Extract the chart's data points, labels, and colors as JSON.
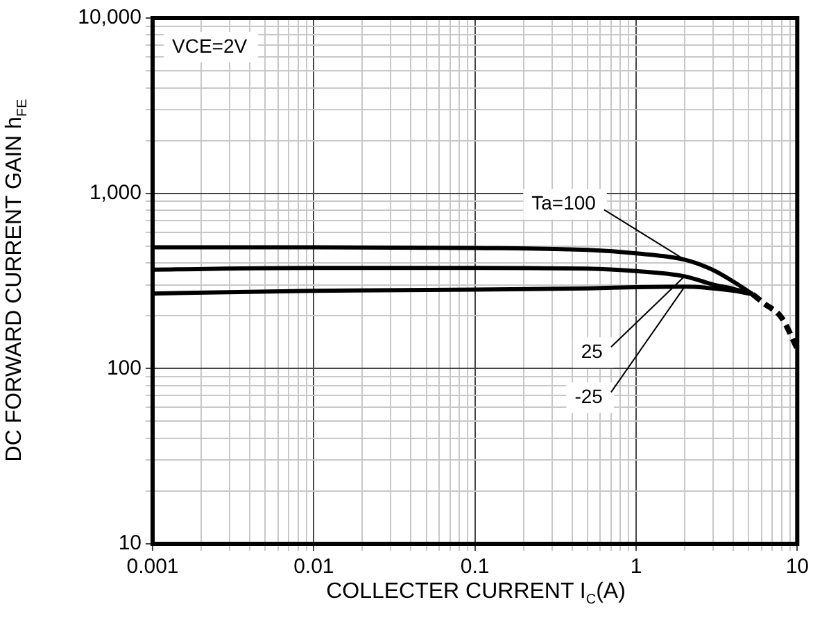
{
  "chart_data": {
    "type": "line",
    "xlabel": "COLLECTER CURRENT  I$_{C}$(A)",
    "ylabel": "DC FORWARD CURRENT GAIN  h$_{FE}$",
    "annotations": [
      "VCE=2V"
    ],
    "log": "xy",
    "grid": true,
    "legend": false,
    "marker": "none",
    "xlim": [
      0.001,
      10
    ],
    "ylim": [
      10,
      10000
    ],
    "xticks": [
      0.001,
      {
        "value": 0.002,
        "label": null
      },
      {
        "value": 0.003,
        "label": null
      },
      {
        "value": 0.004,
        "label": null
      },
      {
        "value": 0.005,
        "label": null
      },
      {
        "value": 0.006,
        "label": null
      },
      {
        "value": 0.007,
        "label": null
      },
      {
        "value": 0.008,
        "label": null
      },
      {
        "value": 0.009,
        "label": null
      },
      0.01,
      {
        "value": 0.02,
        "label": null
      },
      {
        "value": 0.03,
        "label": null
      },
      {
        "value": 0.04,
        "label": null
      },
      {
        "value": 0.05,
        "label": null
      },
      {
        "value": 0.06,
        "label": null
      },
      {
        "value": 0.07,
        "label": null
      },
      {
        "value": 0.08,
        "label": null
      },
      {
        "value": 0.09,
        "label": null
      },
      0.1,
      {
        "value": 0.2,
        "label": null
      },
      {
        "value": 0.3,
        "label": null
      },
      {
        "value": 0.4,
        "label": null
      },
      {
        "value": 0.5,
        "label": null
      },
      {
        "value": 0.6,
        "label": null
      },
      {
        "value": 0.7,
        "label": null
      },
      {
        "value": 0.8,
        "label": null
      },
      {
        "value": 0.9,
        "label": null
      },
      1,
      {
        "value": 2,
        "label": null
      },
      {
        "value": 3,
        "label": null
      },
      {
        "value": 4,
        "label": null
      },
      {
        "value": 5,
        "label": null
      },
      {
        "value": 6,
        "label": null
      },
      {
        "value": 7,
        "label": null
      },
      {
        "value": 8,
        "label": null
      },
      {
        "value": 9,
        "label": null
      },
      10
    ],
    "yticks": [
      10,
      {
        "value": 20,
        "label": null
      },
      {
        "value": 30,
        "label": null
      },
      {
        "value": 40,
        "label": null
      },
      {
        "value": 50,
        "label": null
      },
      {
        "value": 60,
        "label": null
      },
      {
        "value": 70,
        "label": null
      },
      {
        "value": 80,
        "label": null
      },
      {
        "value": 90,
        "label": null
      },
      100,
      {
        "value": 200,
        "label": null
      },
      {
        "value": 300,
        "label": null
      },
      {
        "value": 400,
        "label": null
      },
      {
        "value": 500,
        "label": null
      },
      {
        "value": 600,
        "label": null
      },
      {
        "value": 700,
        "label": null
      },
      {
        "value": 800,
        "label": null
      },
      {
        "value": 900,
        "label": null
      },
      {
        "value": 1000,
        "label": "1,000"
      },
      {
        "value": 2000,
        "label": null
      },
      {
        "value": 3000,
        "label": null
      },
      {
        "value": 4000,
        "label": null
      },
      {
        "value": 5000,
        "label": null
      },
      {
        "value": 6000,
        "label": null
      },
      {
        "value": 7000,
        "label": null
      },
      {
        "value": 8000,
        "label": null
      },
      {
        "value": 9000,
        "label": null
      },
      {
        "value": 10000,
        "label": "10,000"
      }
    ],
    "series": [
      {
        "name": "Ta=100",
        "color": "#000000",
        "x": [
          0.001,
          0.01,
          0.1,
          0.5,
          1,
          2,
          3,
          4,
          5.3
        ],
        "values": [
          492,
          492,
          488,
          475,
          454,
          418,
          365,
          314,
          265
        ]
      },
      {
        "name": "25",
        "color": "#000000",
        "x": [
          0.001,
          0.01,
          0.1,
          0.5,
          1,
          2,
          3,
          4,
          5.3
        ],
        "values": [
          367,
          375,
          375,
          372,
          360,
          336,
          302,
          285,
          265
        ]
      },
      {
        "name": "-25",
        "color": "#000000",
        "x": [
          0.001,
          0.01,
          0.1,
          0.5,
          1,
          2,
          3,
          4,
          5.3
        ],
        "values": [
          268,
          278,
          282,
          287,
          291,
          293,
          287,
          278,
          265
        ]
      },
      {
        "color": "#000000",
        "line_style": "dashed",
        "x": [
          5.3,
          6.2,
          8,
          10
        ],
        "values": [
          265,
          236,
          195,
          130
        ]
      }
    ]
  }
}
